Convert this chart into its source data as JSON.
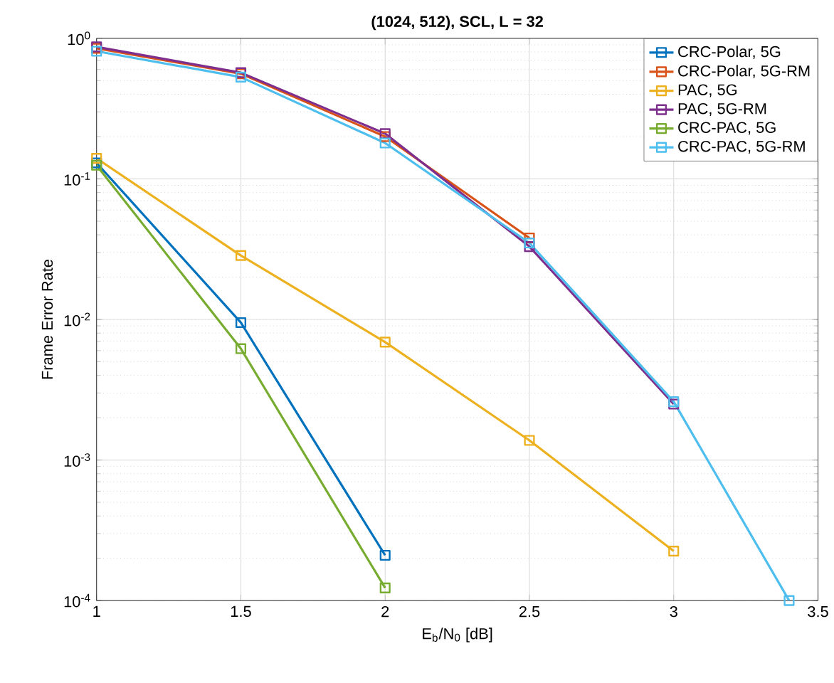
{
  "chart_data": {
    "type": "line",
    "title": "(1024, 512), SCL, L = 32",
    "xlabel": "E$_{b}$/N$_{0}$ [dB]",
    "ylabel": "Frame Error Rate",
    "xlim": [
      1,
      3.5
    ],
    "xticks": [
      1,
      1.5,
      2,
      2.5,
      3,
      3.5
    ],
    "ylim": [
      0.0001,
      1
    ],
    "yticks": [
      {
        "value": 0.0001,
        "label": "10$^{-4}$"
      },
      {
        "value": 0.001,
        "label": "10$^{-3}$"
      },
      {
        "value": 0.01,
        "label": "10$^{-2}$"
      },
      {
        "value": 0.1,
        "label": "10$^{-1}$"
      },
      {
        "value": 1,
        "label": "10$^{0}$"
      }
    ],
    "log": "y",
    "grid": true,
    "legend": "top right",
    "marker": "square",
    "line_style": "solid",
    "series": [
      {
        "name": "CRC-Polar, 5G",
        "color": "#0072bd",
        "x": [
          1,
          1.5,
          2
        ],
        "values": [
          0.13,
          0.0095,
          0.00021
        ]
      },
      {
        "name": "CRC-Polar, 5G-RM",
        "color": "#d95319",
        "x": [
          1,
          1.5,
          2,
          2.5
        ],
        "values": [
          0.85,
          0.56,
          0.2,
          0.038
        ]
      },
      {
        "name": "PAC, 5G",
        "color": "#edb120",
        "x": [
          1,
          1.5,
          2,
          2.5,
          3
        ],
        "values": [
          0.14,
          0.0285,
          0.0069,
          0.00138,
          0.000225
        ]
      },
      {
        "name": "PAC, 5G-RM",
        "color": "#7e2f8e",
        "x": [
          1,
          1.5,
          2,
          2.5,
          3
        ],
        "values": [
          0.87,
          0.57,
          0.21,
          0.033,
          0.0025
        ]
      },
      {
        "name": "CRC-PAC, 5G",
        "color": "#77ac30",
        "x": [
          1,
          1.5,
          2
        ],
        "values": [
          0.125,
          0.0062,
          0.000123
        ]
      },
      {
        "name": "CRC-PAC, 5G-RM",
        "color": "#4dbeee",
        "x": [
          1,
          1.5,
          2,
          2.5,
          3,
          3.4
        ],
        "values": [
          0.81,
          0.53,
          0.18,
          0.035,
          0.0026,
          0.0001
        ]
      }
    ]
  }
}
